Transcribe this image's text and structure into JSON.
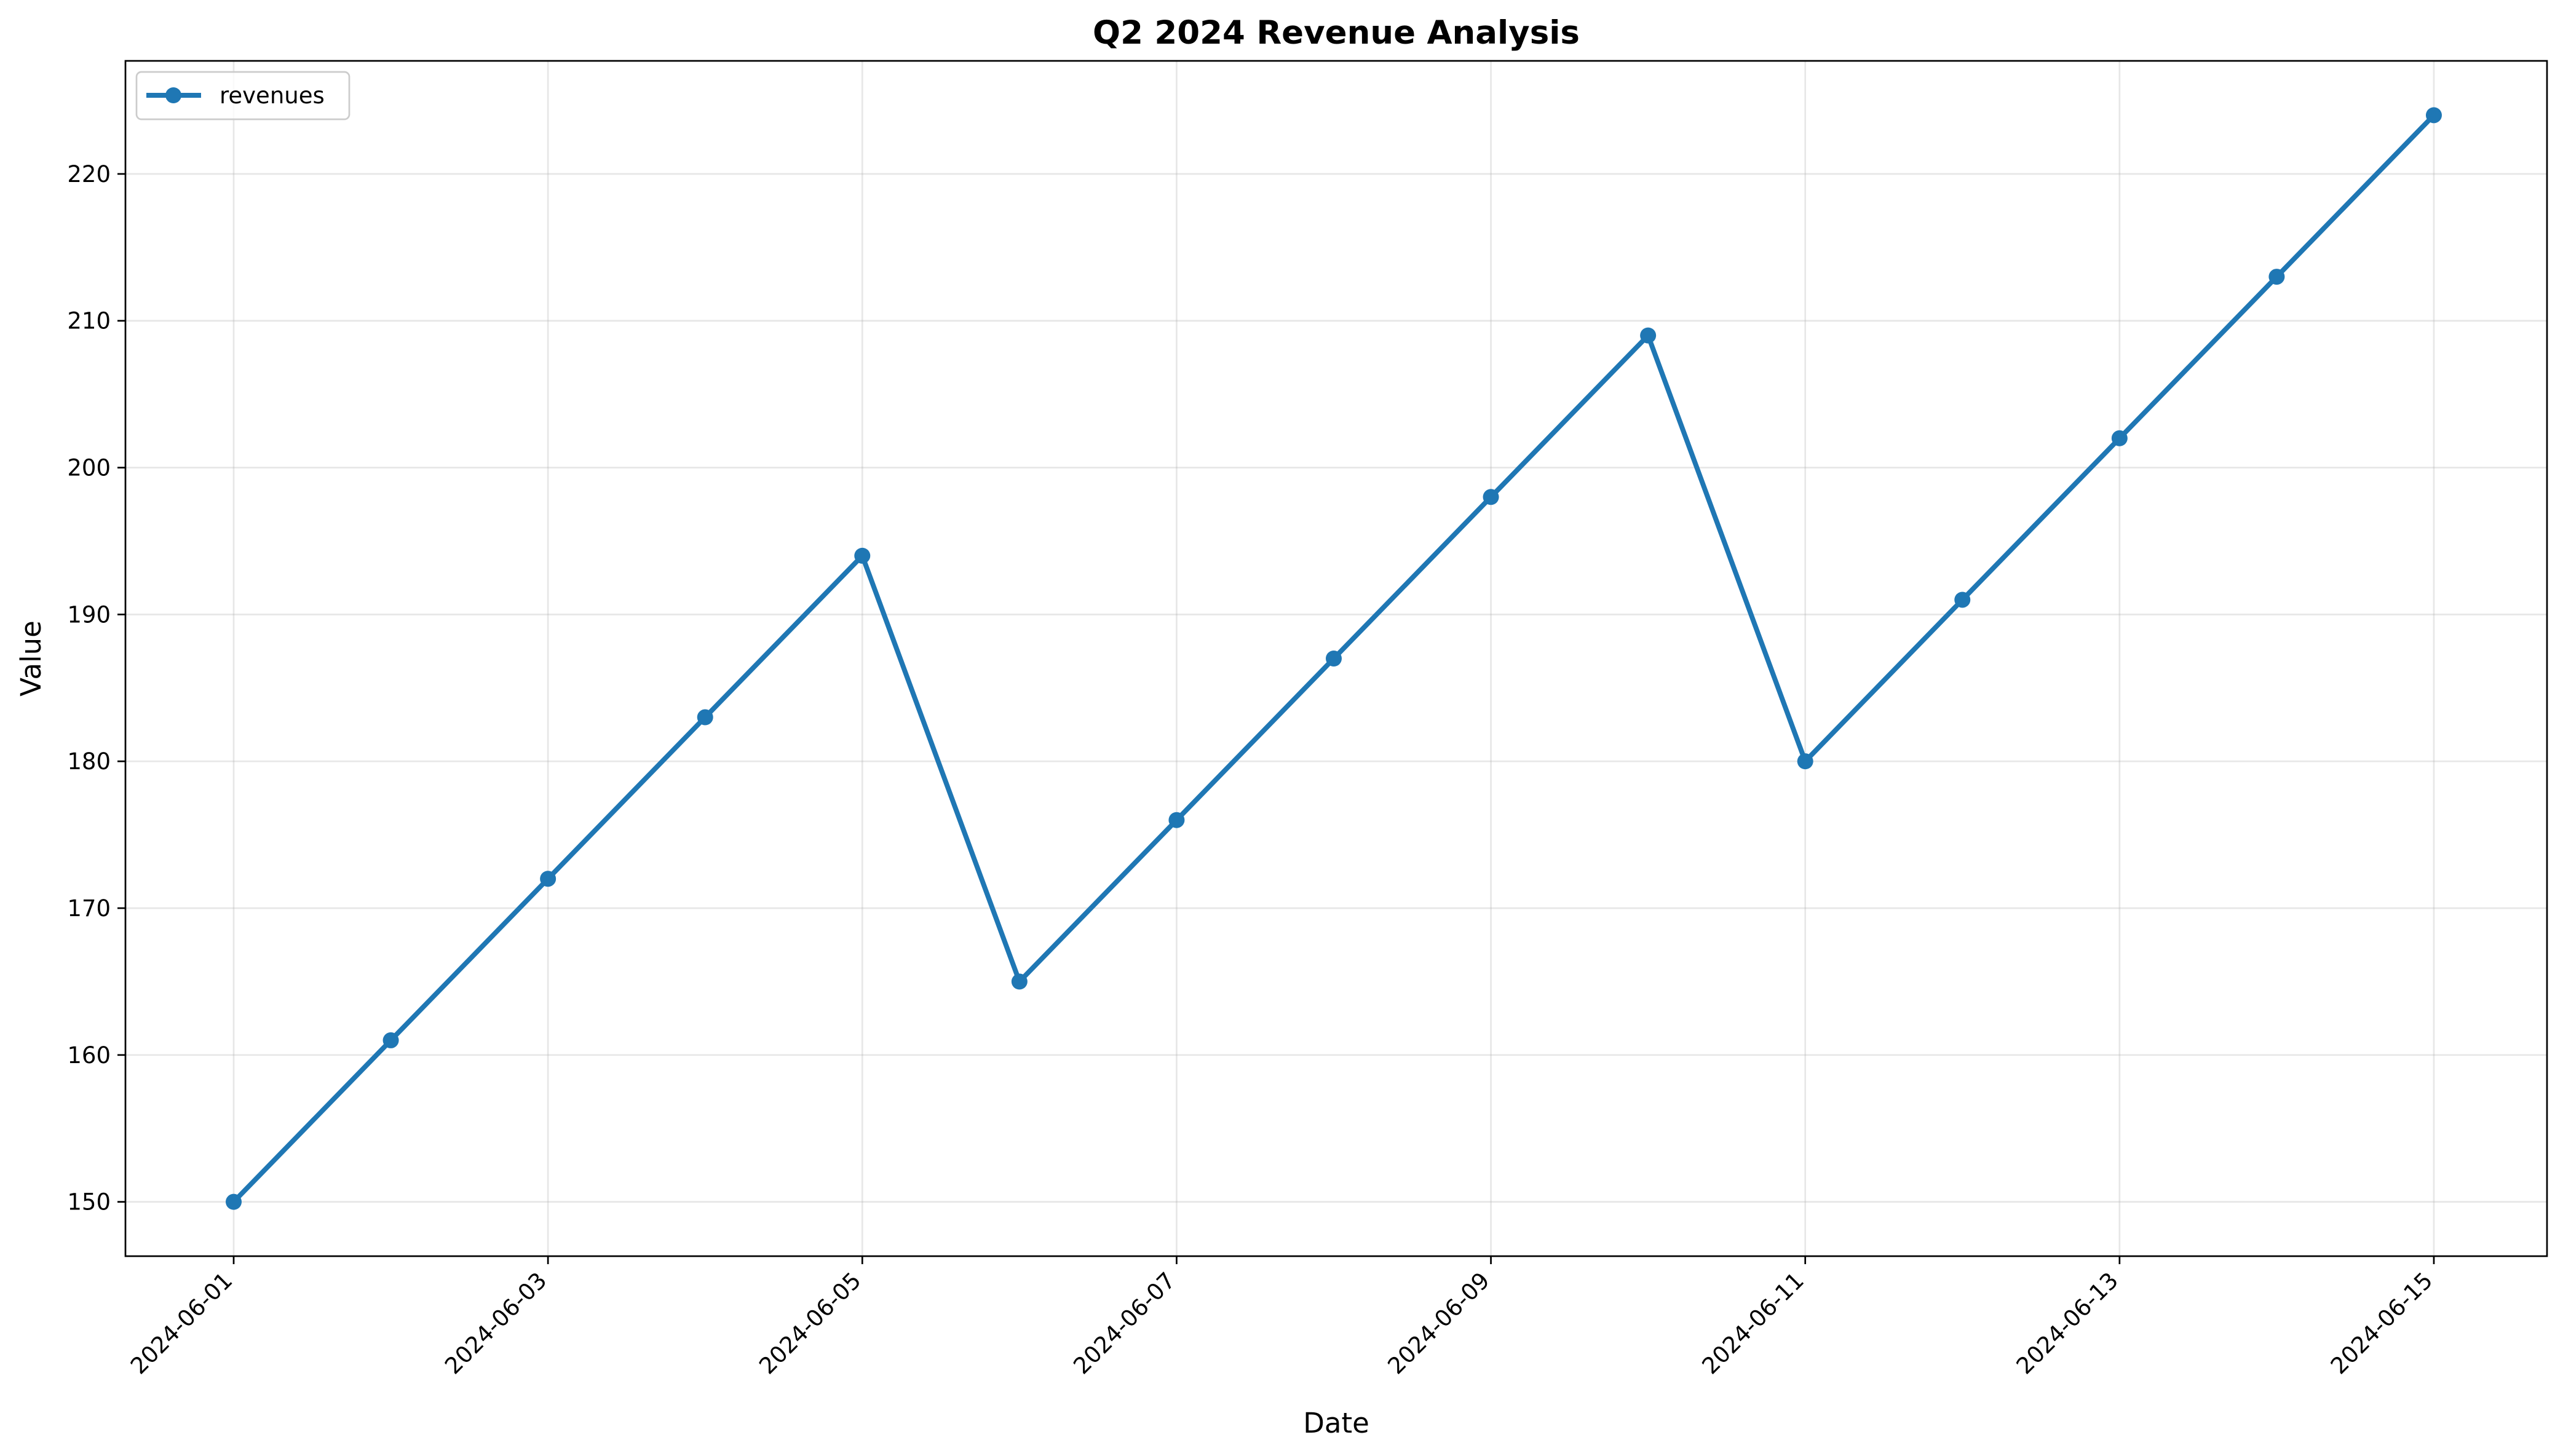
{
  "chart_data": {
    "type": "line",
    "title": "Q2 2024 Revenue Analysis",
    "xlabel": "Date",
    "ylabel": "Value",
    "x": [
      "2024-06-01",
      "2024-06-02",
      "2024-06-03",
      "2024-06-04",
      "2024-06-05",
      "2024-06-06",
      "2024-06-07",
      "2024-06-08",
      "2024-06-09",
      "2024-06-10",
      "2024-06-11",
      "2024-06-12",
      "2024-06-13",
      "2024-06-14",
      "2024-06-15"
    ],
    "x_tick_labels": [
      "2024-06-01",
      "2024-06-03",
      "2024-06-05",
      "2024-06-07",
      "2024-06-09",
      "2024-06-11",
      "2024-06-13",
      "2024-06-15"
    ],
    "y_ticks": [
      150,
      160,
      170,
      180,
      190,
      200,
      210,
      220
    ],
    "ylim": [
      146.3,
      227.7
    ],
    "series": [
      {
        "name": "revenues",
        "color": "#1f77b4",
        "values": [
          150,
          161,
          172,
          183,
          194,
          165,
          176,
          187,
          198,
          209,
          180,
          191,
          202,
          213,
          224
        ]
      }
    ],
    "grid": true,
    "legend_position": "top-left"
  }
}
